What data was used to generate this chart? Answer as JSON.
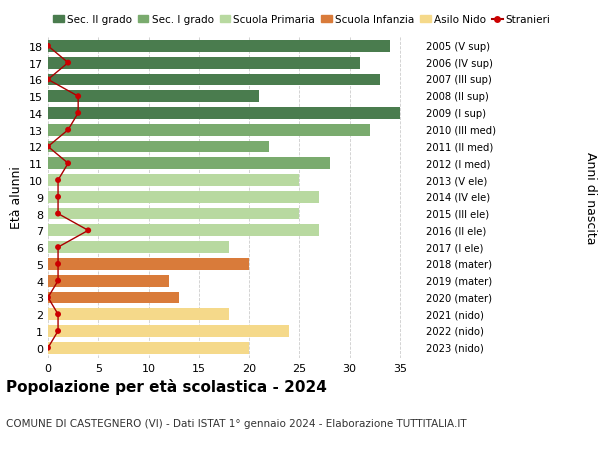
{
  "ages": [
    18,
    17,
    16,
    15,
    14,
    13,
    12,
    11,
    10,
    9,
    8,
    7,
    6,
    5,
    4,
    3,
    2,
    1,
    0
  ],
  "anni_nascita": [
    "2005 (V sup)",
    "2006 (IV sup)",
    "2007 (III sup)",
    "2008 (II sup)",
    "2009 (I sup)",
    "2010 (III med)",
    "2011 (II med)",
    "2012 (I med)",
    "2013 (V ele)",
    "2014 (IV ele)",
    "2015 (III ele)",
    "2016 (II ele)",
    "2017 (I ele)",
    "2018 (mater)",
    "2019 (mater)",
    "2020 (mater)",
    "2021 (nido)",
    "2022 (nido)",
    "2023 (nido)"
  ],
  "bar_values": [
    34,
    31,
    33,
    21,
    35,
    32,
    22,
    28,
    25,
    27,
    25,
    27,
    18,
    20,
    12,
    13,
    18,
    24,
    20
  ],
  "bar_colors": [
    "#4a7c4e",
    "#4a7c4e",
    "#4a7c4e",
    "#4a7c4e",
    "#4a7c4e",
    "#7aab6e",
    "#7aab6e",
    "#7aab6e",
    "#b8d9a0",
    "#b8d9a0",
    "#b8d9a0",
    "#b8d9a0",
    "#b8d9a0",
    "#d97b3a",
    "#d97b3a",
    "#d97b3a",
    "#f5d98a",
    "#f5d98a",
    "#f5d98a"
  ],
  "stranieri_values": [
    0,
    2,
    0,
    3,
    3,
    2,
    0,
    2,
    1,
    1,
    1,
    4,
    1,
    1,
    1,
    0,
    1,
    1,
    0
  ],
  "legend_labels": [
    "Sec. II grado",
    "Sec. I grado",
    "Scuola Primaria",
    "Scuola Infanzia",
    "Asilo Nido",
    "Stranieri"
  ],
  "legend_colors": [
    "#4a7c4e",
    "#7aab6e",
    "#b8d9a0",
    "#d97b3a",
    "#f5d98a",
    "#cc0000"
  ],
  "ylabel_left": "Età alunni",
  "ylabel_right": "Anni di nascita",
  "xlim": [
    0,
    37
  ],
  "xticks": [
    0,
    5,
    10,
    15,
    20,
    25,
    30,
    35
  ],
  "title": "Popolazione per età scolastica - 2024",
  "subtitle": "COMUNE DI CASTEGNERO (VI) - Dati ISTAT 1° gennaio 2024 - Elaborazione TUTTITALIA.IT",
  "bar_height": 0.7,
  "background_color": "#ffffff",
  "grid_color": "#cccccc",
  "stranieri_line_color": "#aa0000",
  "stranieri_dot_color": "#cc0000"
}
